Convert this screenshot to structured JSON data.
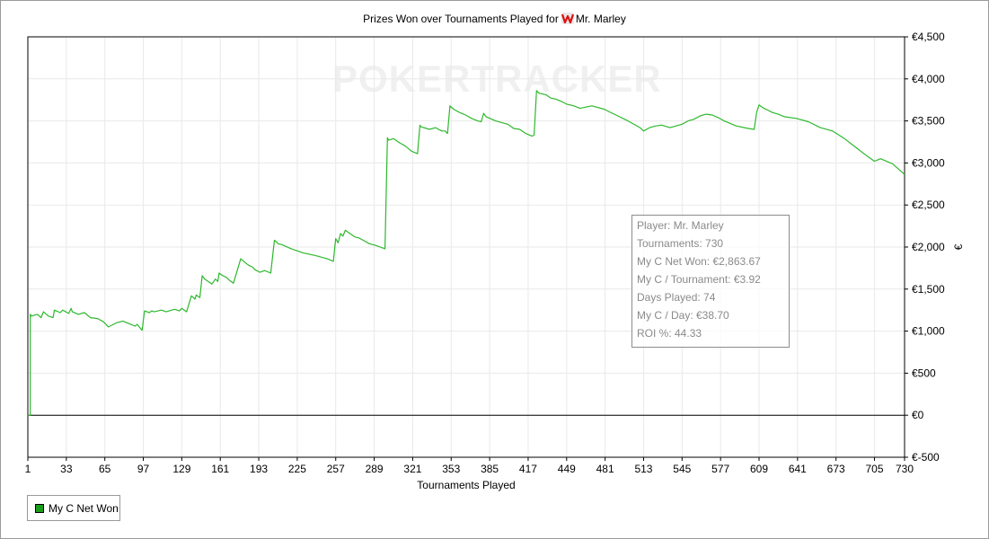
{
  "header": {
    "title_prefix": "Prizes Won over Tournaments Played for",
    "player_name": "Mr. Marley"
  },
  "watermark": {
    "part1": "POKER",
    "part2": "TRACKER"
  },
  "stats": [
    "Player: Mr. Marley",
    "Tournaments: 730",
    "My C Net Won: €2,863.67",
    "My C / Tournament: €3.92",
    "Days Played: 74",
    "My C / Day: €38.70",
    "ROI %: 44.33"
  ],
  "legend": {
    "label": "My C Net Won"
  },
  "colors": {
    "series": "#2eb82e",
    "zero_line": "#000000",
    "grid": "#e9e9e9",
    "legend_swatch": "#1a9e1a"
  },
  "chart_data": {
    "type": "line",
    "title": "Prizes Won over Tournaments Played for Mr. Marley",
    "xlabel": "Tournaments Played",
    "ylabel": "€",
    "xlim": [
      1,
      730
    ],
    "ylim": [
      -500,
      4500
    ],
    "x_ticks": [
      1,
      33,
      65,
      97,
      129,
      161,
      193,
      225,
      257,
      289,
      321,
      353,
      385,
      417,
      449,
      481,
      513,
      545,
      577,
      609,
      641,
      673,
      705,
      730
    ],
    "y_ticks": [
      -500,
      0,
      500,
      1000,
      1500,
      2000,
      2500,
      3000,
      3500,
      4000,
      4500
    ],
    "y_tick_labels": [
      "€-500",
      "€0",
      "€500",
      "€1,000",
      "€1,500",
      "€2,000",
      "€2,500",
      "€3,000",
      "€3,500",
      "€4,000",
      "€4,500"
    ],
    "grid": true,
    "legend_position": "bottom-left",
    "series": [
      {
        "name": "My C Net Won",
        "x": [
          1,
          3,
          3,
          4,
          9,
          12,
          14,
          18,
          22,
          23,
          28,
          30,
          35,
          37,
          38,
          43,
          48,
          53,
          59,
          64,
          66,
          68,
          75,
          80,
          85,
          90,
          92,
          96,
          98,
          102,
          104,
          106,
          112,
          116,
          123,
          127,
          129,
          133,
          137,
          140,
          141,
          144,
          146,
          148,
          150,
          154,
          157,
          159,
          160,
          163,
          166,
          169,
          172,
          178,
          183,
          185,
          188,
          190,
          194,
          198,
          203,
          206,
          208,
          209,
          212,
          220,
          230,
          240,
          250,
          255,
          257,
          259,
          261,
          263,
          265,
          267,
          270,
          273,
          276,
          280,
          285,
          290,
          298,
          300,
          301,
          305,
          310,
          315,
          320,
          325,
          327,
          328,
          335,
          340,
          345,
          348,
          350,
          352,
          355,
          360,
          365,
          370,
          375,
          378,
          380,
          382,
          390,
          400,
          405,
          410,
          415,
          420,
          422,
          424,
          426,
          432,
          436,
          440,
          445,
          449,
          455,
          460,
          470,
          480,
          490,
          500,
          510,
          513,
          518,
          523,
          528,
          535,
          540,
          545,
          550,
          555,
          560,
          565,
          570,
          575,
          580,
          590,
          600,
          605,
          607,
          609,
          611,
          613,
          616,
          620,
          625,
          630,
          640,
          650,
          660,
          670,
          680,
          690,
          700,
          705,
          710,
          720,
          730
        ],
        "y": [
          0,
          0,
          1200,
          1180,
          1200,
          1160,
          1230,
          1180,
          1160,
          1250,
          1220,
          1250,
          1210,
          1270,
          1230,
          1200,
          1220,
          1160,
          1150,
          1110,
          1080,
          1050,
          1100,
          1120,
          1090,
          1060,
          1080,
          1010,
          1240,
          1220,
          1240,
          1230,
          1250,
          1230,
          1260,
          1240,
          1270,
          1230,
          1420,
          1380,
          1430,
          1400,
          1660,
          1620,
          1600,
          1560,
          1620,
          1590,
          1690,
          1660,
          1640,
          1600,
          1570,
          1860,
          1800,
          1780,
          1760,
          1730,
          1700,
          1720,
          1690,
          2080,
          2060,
          2040,
          2030,
          1980,
          1930,
          1900,
          1860,
          1830,
          2100,
          2050,
          2160,
          2130,
          2200,
          2180,
          2150,
          2120,
          2110,
          2080,
          2040,
          2020,
          1980,
          3300,
          3270,
          3290,
          3240,
          3200,
          3140,
          3110,
          3450,
          3430,
          3400,
          3420,
          3380,
          3380,
          3350,
          3680,
          3640,
          3600,
          3570,
          3530,
          3500,
          3490,
          3590,
          3550,
          3500,
          3460,
          3410,
          3400,
          3350,
          3320,
          3330,
          3860,
          3830,
          3810,
          3770,
          3760,
          3730,
          3700,
          3680,
          3650,
          3680,
          3640,
          3570,
          3500,
          3420,
          3380,
          3420,
          3440,
          3450,
          3420,
          3440,
          3460,
          3500,
          3520,
          3560,
          3580,
          3570,
          3540,
          3500,
          3440,
          3410,
          3400,
          3600,
          3690,
          3670,
          3650,
          3630,
          3600,
          3580,
          3550,
          3530,
          3490,
          3420,
          3380,
          3290,
          3180,
          3070,
          3020,
          3050,
          2990,
          2863.67
        ]
      }
    ]
  }
}
